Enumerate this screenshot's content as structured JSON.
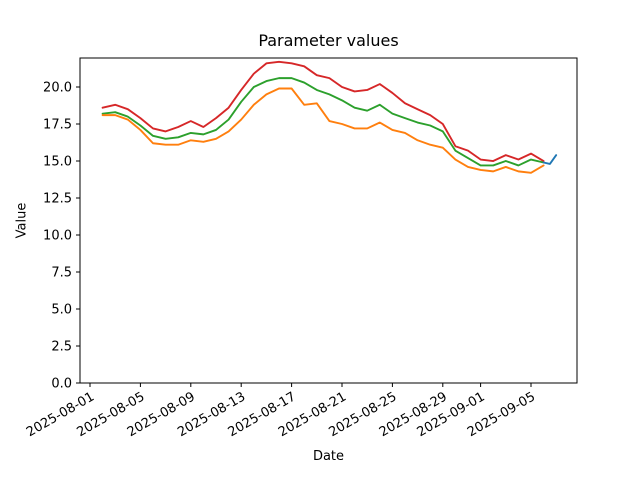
{
  "figure": {
    "title": "Parameter values",
    "xlabel": "Date",
    "ylabel": "Value"
  },
  "chart_data": {
    "type": "line",
    "title": "Parameter values",
    "xlabel": "Date",
    "ylabel": "Value",
    "x_axis_type": "date",
    "ylim": [
      0.0,
      21.96
    ],
    "grid": false,
    "legend": "none",
    "y_tick_labels": [
      "0.0",
      "2.5",
      "5.0",
      "7.5",
      "10.0",
      "12.5",
      "15.0",
      "17.5",
      "20.0"
    ],
    "x_tick_labels": [
      "2025-08-01",
      "2025-08-05",
      "2025-08-09",
      "2025-08-13",
      "2025-08-17",
      "2025-08-21",
      "2025-08-25",
      "2025-08-29",
      "2025-09-01",
      "2025-09-05"
    ],
    "x": [
      "2025-08-02",
      "2025-08-03",
      "2025-08-04",
      "2025-08-05",
      "2025-08-06",
      "2025-08-07",
      "2025-08-08",
      "2025-08-09",
      "2025-08-10",
      "2025-08-11",
      "2025-08-12",
      "2025-08-13",
      "2025-08-14",
      "2025-08-15",
      "2025-08-16",
      "2025-08-17",
      "2025-08-18",
      "2025-08-19",
      "2025-08-20",
      "2025-08-21",
      "2025-08-22",
      "2025-08-23",
      "2025-08-24",
      "2025-08-25",
      "2025-08-26",
      "2025-08-27",
      "2025-08-28",
      "2025-08-29",
      "2025-08-30",
      "2025-08-31",
      "2025-09-01",
      "2025-09-02",
      "2025-09-03",
      "2025-09-04",
      "2025-09-05",
      "2025-09-06"
    ],
    "series": [
      {
        "name": "red",
        "color": "#d62728",
        "values": [
          18.6,
          18.8,
          18.5,
          17.9,
          17.2,
          17.0,
          17.3,
          17.7,
          17.3,
          17.9,
          18.6,
          19.8,
          20.9,
          21.6,
          21.7,
          21.6,
          21.4,
          20.8,
          20.6,
          20.0,
          19.7,
          19.8,
          20.2,
          19.6,
          18.9,
          18.5,
          18.1,
          17.5,
          16.0,
          15.7,
          15.1,
          15.0,
          15.4,
          15.1,
          15.5,
          15.0
        ]
      },
      {
        "name": "green",
        "color": "#2ca02c",
        "values": [
          18.2,
          18.3,
          18.0,
          17.4,
          16.7,
          16.5,
          16.6,
          16.9,
          16.8,
          17.1,
          17.8,
          19.0,
          20.0,
          20.4,
          20.6,
          20.6,
          20.3,
          19.8,
          19.5,
          19.1,
          18.6,
          18.4,
          18.8,
          18.2,
          17.9,
          17.6,
          17.4,
          17.0,
          15.7,
          15.2,
          14.7,
          14.7,
          15.0,
          14.7,
          15.1,
          14.9
        ]
      },
      {
        "name": "orange",
        "color": "#ff7f0e",
        "values": [
          18.1,
          18.1,
          17.8,
          17.1,
          16.2,
          16.1,
          16.1,
          16.4,
          16.3,
          16.5,
          17.0,
          17.8,
          18.8,
          19.5,
          19.9,
          19.9,
          18.8,
          18.9,
          17.7,
          17.5,
          17.2,
          17.2,
          17.6,
          17.1,
          16.9,
          16.4,
          16.1,
          15.9,
          15.1,
          14.6,
          14.4,
          14.3,
          14.6,
          14.3,
          14.2,
          14.7
        ]
      },
      {
        "name": "blue",
        "color": "#1f77b4",
        "x": [
          "2025-09-06",
          "2025-09-06T12:00",
          "2025-09-07"
        ],
        "values": [
          14.9,
          14.8,
          15.4
        ]
      }
    ]
  }
}
